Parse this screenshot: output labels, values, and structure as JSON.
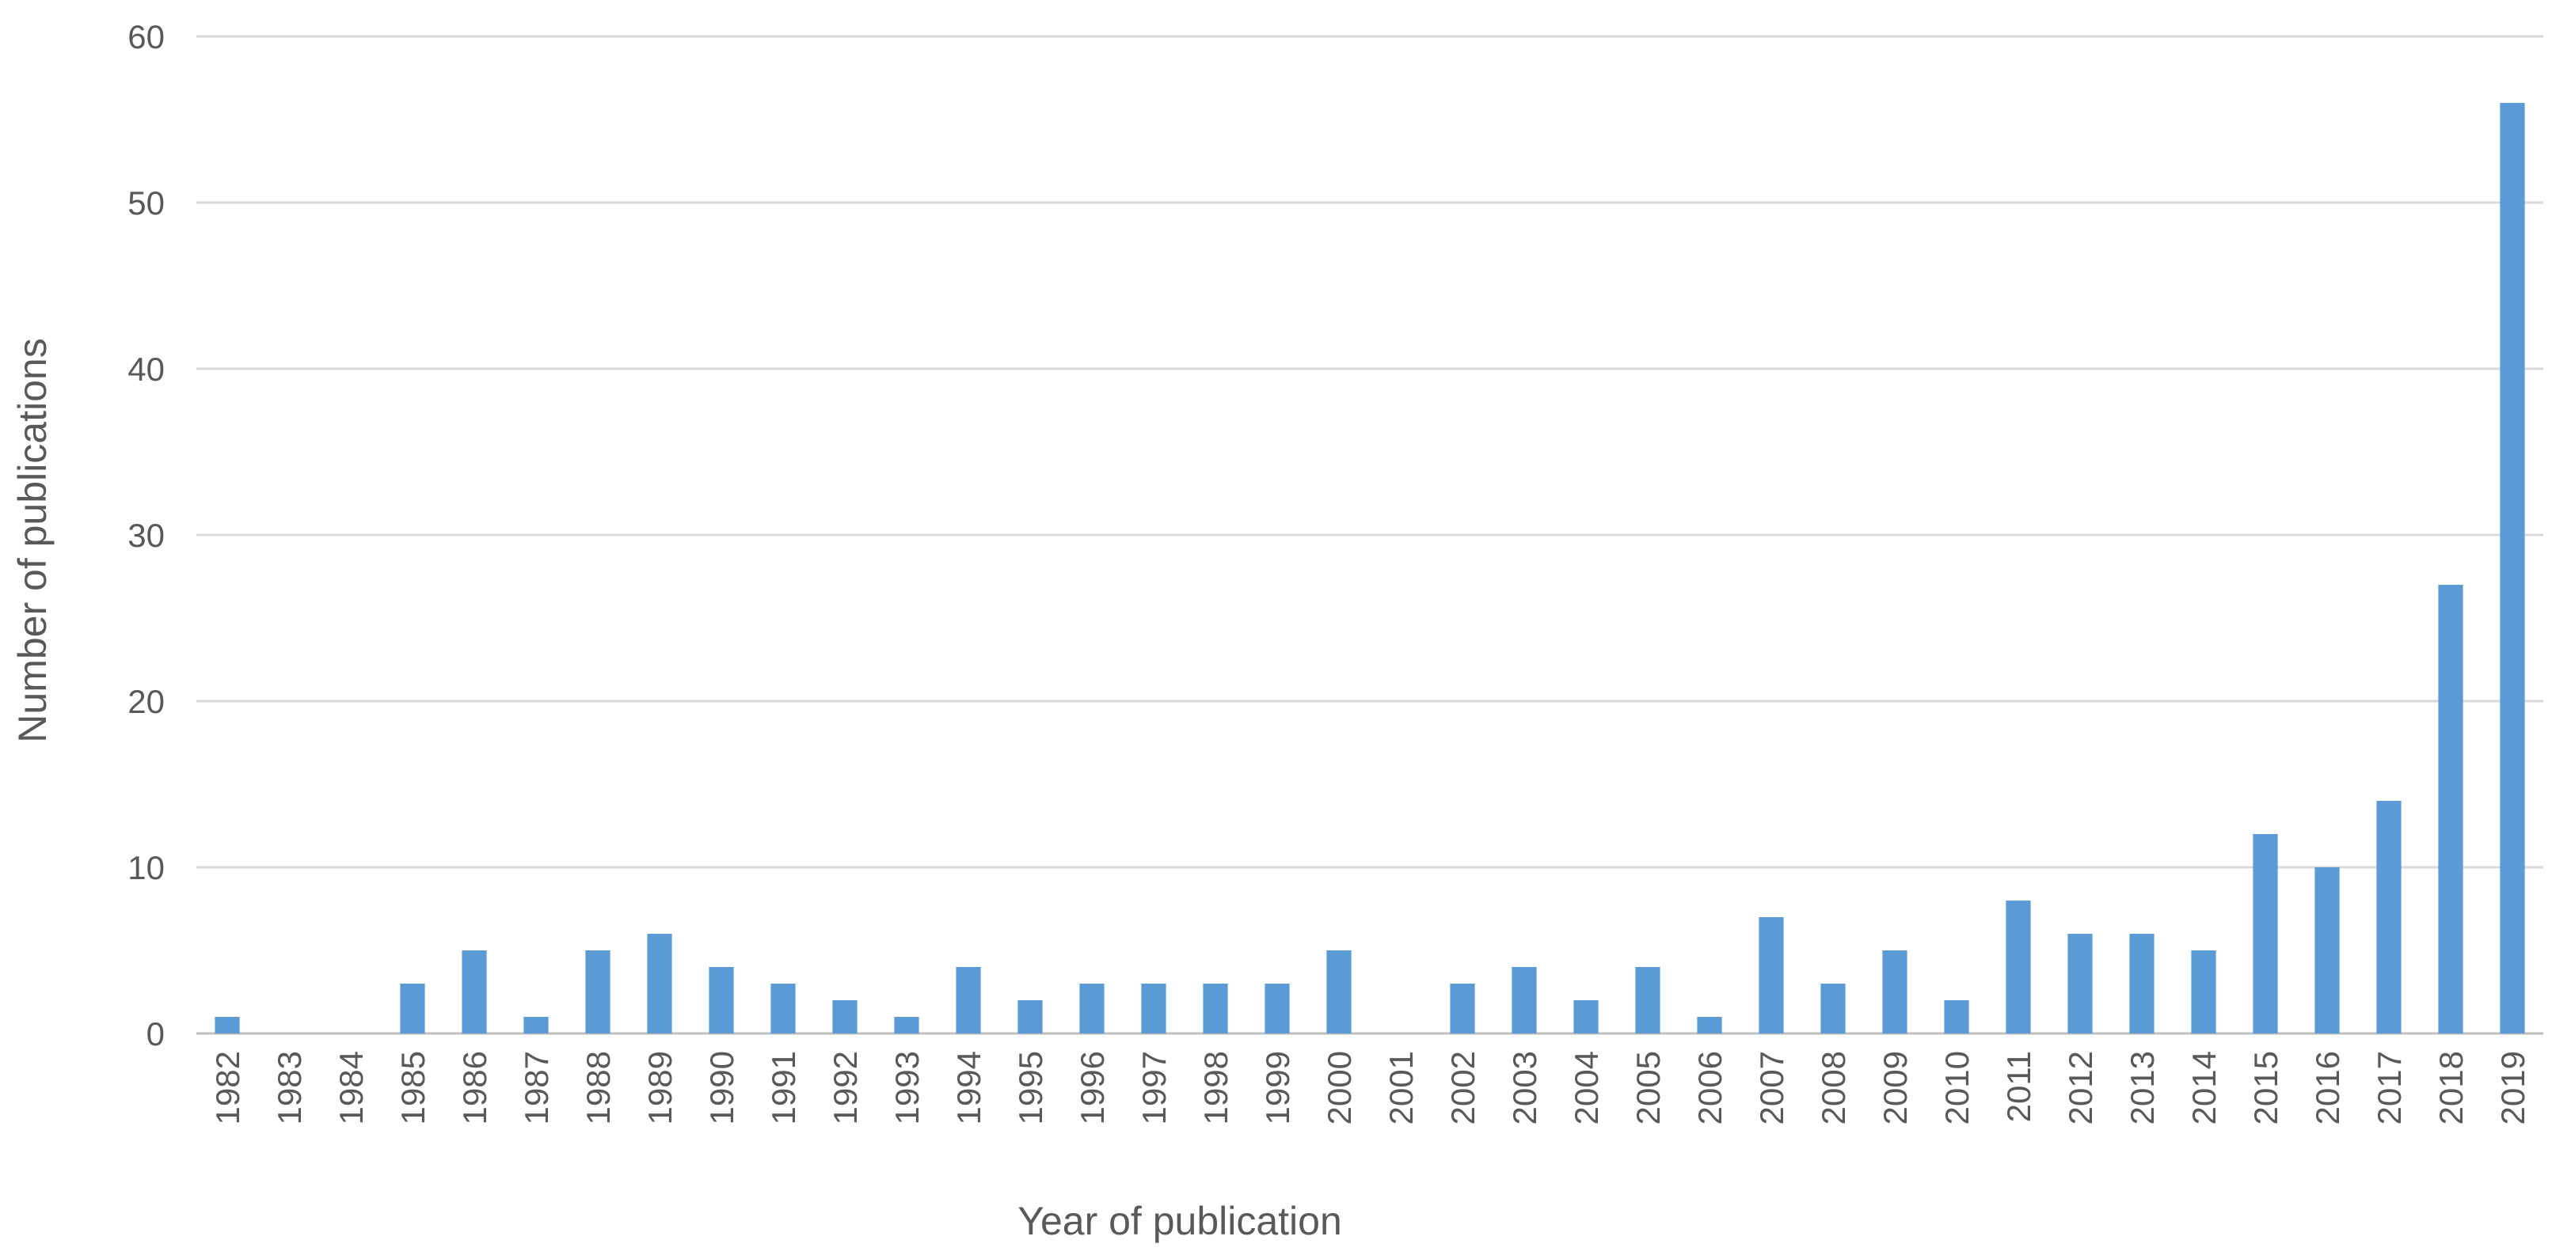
{
  "chart_data": {
    "type": "bar",
    "x_label": "Year of publication",
    "y_label": "Number of publications",
    "categories": [
      "1982",
      "1983",
      "1984",
      "1985",
      "1986",
      "1987",
      "1988",
      "1989",
      "1990",
      "1991",
      "1992",
      "1993",
      "1994",
      "1995",
      "1996",
      "1997",
      "1998",
      "1999",
      "2000",
      "2001",
      "2002",
      "2003",
      "2004",
      "2005",
      "2006",
      "2007",
      "2008",
      "2009",
      "2010",
      "2011",
      "2012",
      "2013",
      "2014",
      "2015",
      "2016",
      "2017",
      "2018",
      "2019"
    ],
    "values": [
      1,
      0,
      0,
      3,
      5,
      1,
      5,
      6,
      4,
      3,
      2,
      1,
      4,
      2,
      3,
      3,
      3,
      3,
      5,
      0,
      3,
      4,
      2,
      4,
      1,
      7,
      3,
      5,
      2,
      8,
      6,
      6,
      5,
      12,
      10,
      14,
      27,
      56
    ],
    "color": "#5b9bd5",
    "ylim": [
      0,
      60
    ],
    "yticks": [
      0,
      10,
      20,
      30,
      40,
      50,
      60
    ],
    "grid": true
  }
}
